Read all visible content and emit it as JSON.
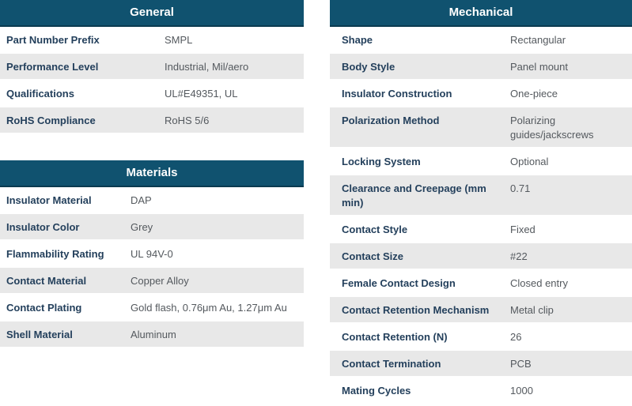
{
  "colors": {
    "header_bg": "#10526f",
    "header_border": "#0a3a50",
    "header_text": "#ffffff",
    "row_alt_bg": "#e8e8e8",
    "label_text": "#24405c",
    "value_text": "#54595e"
  },
  "tables": [
    {
      "id": "general",
      "title": "General",
      "rows": [
        {
          "label": "Part Number Prefix",
          "value": "SMPL"
        },
        {
          "label": "Performance Level",
          "value": "Industrial, Mil/aero"
        },
        {
          "label": "Qualifications",
          "value": "UL#E49351, UL"
        },
        {
          "label": "RoHS Compliance",
          "value": "RoHS 5/6"
        }
      ]
    },
    {
      "id": "materials",
      "title": "Materials",
      "rows": [
        {
          "label": "Insulator Material",
          "value": "DAP"
        },
        {
          "label": "Insulator Color",
          "value": "Grey"
        },
        {
          "label": "Flammability Rating",
          "value": "UL 94V-0"
        },
        {
          "label": "Contact Material",
          "value": "Copper Alloy"
        },
        {
          "label": "Contact Plating",
          "value": "Gold flash, 0.76μm Au, 1.27μm Au"
        },
        {
          "label": "Shell Material",
          "value": "Aluminum"
        }
      ]
    },
    {
      "id": "mechanical",
      "title": "Mechanical",
      "rows": [
        {
          "label": "Shape",
          "value": "Rectangular"
        },
        {
          "label": "Body Style",
          "value": "Panel mount"
        },
        {
          "label": "Insulator Construction",
          "value": "One-piece"
        },
        {
          "label": "Polarization Method",
          "value": "Polarizing guides/jackscrews"
        },
        {
          "label": "Locking System",
          "value": "Optional"
        },
        {
          "label": "Clearance and Creepage (mm min)",
          "value": "0.71"
        },
        {
          "label": "Contact Style",
          "value": "Fixed"
        },
        {
          "label": "Contact Size",
          "value": "#22"
        },
        {
          "label": "Female Contact Design",
          "value": "Closed entry"
        },
        {
          "label": "Contact Retention Mechanism",
          "value": "Metal clip"
        },
        {
          "label": "Contact Retention (N)",
          "value": "26"
        },
        {
          "label": "Contact Termination",
          "value": "PCB"
        },
        {
          "label": "Mating Cycles",
          "value": "1000"
        }
      ]
    }
  ]
}
